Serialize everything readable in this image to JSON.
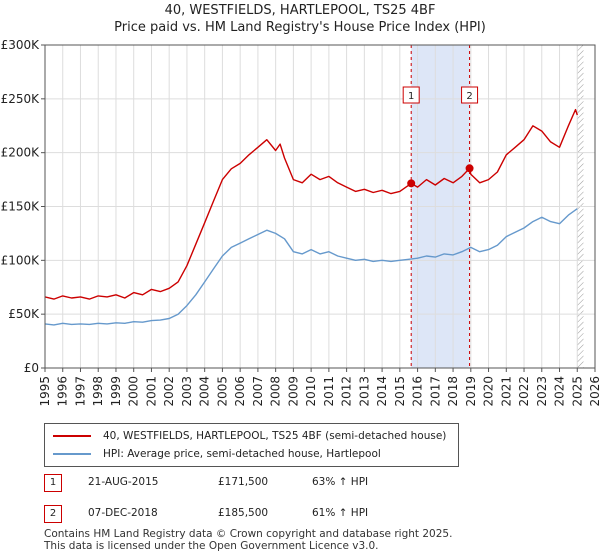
{
  "title_line1": "40, WESTFIELDS, HARTLEPOOL, TS25 4BF",
  "title_line2": "Price paid vs. HM Land Registry's House Price Index (HPI)",
  "chart_data": {
    "type": "line",
    "title": "40, WESTFIELDS, HARTLEPOOL, TS25 4BF - Price paid vs. HM Land Registry's House Price Index (HPI)",
    "xlabel": "",
    "ylabel": "",
    "xlim": [
      1995,
      2026
    ],
    "ylim": [
      0,
      300000
    ],
    "x_ticks": [
      1995,
      1996,
      1997,
      1998,
      1999,
      2000,
      2001,
      2002,
      2003,
      2004,
      2005,
      2006,
      2007,
      2008,
      2009,
      2010,
      2011,
      2012,
      2013,
      2014,
      2015,
      2016,
      2017,
      2018,
      2019,
      2020,
      2021,
      2022,
      2023,
      2024,
      2025,
      2026
    ],
    "y_ticks": [
      {
        "value": 0,
        "label": "£0"
      },
      {
        "value": 50000,
        "label": "£50K"
      },
      {
        "value": 100000,
        "label": "£100K"
      },
      {
        "value": 150000,
        "label": "£150K"
      },
      {
        "value": 200000,
        "label": "£200K"
      },
      {
        "value": 250000,
        "label": "£250K"
      },
      {
        "value": 300000,
        "label": "£300K"
      }
    ],
    "grid": true,
    "colors": {
      "red": "#cc0000",
      "blue": "#6699cc",
      "shade": "#dde6f7",
      "grid": "#dddddd"
    },
    "shaded_region": [
      2015.64,
      2018.93
    ],
    "hatched_from": 2025.0,
    "series": [
      {
        "name": "40, WESTFIELDS, HARTLEPOOL, TS25 4BF (semi-detached house)",
        "color": "#cc0000",
        "points": [
          [
            1995.0,
            66000
          ],
          [
            1995.5,
            64000
          ],
          [
            1996.0,
            67000
          ],
          [
            1996.5,
            65000
          ],
          [
            1997.0,
            66000
          ],
          [
            1997.5,
            64000
          ],
          [
            1998.0,
            67000
          ],
          [
            1998.5,
            66000
          ],
          [
            1999.0,
            68000
          ],
          [
            1999.5,
            65000
          ],
          [
            2000.0,
            70000
          ],
          [
            2000.5,
            68000
          ],
          [
            2001.0,
            73000
          ],
          [
            2001.5,
            71000
          ],
          [
            2002.0,
            74000
          ],
          [
            2002.5,
            80000
          ],
          [
            2003.0,
            95000
          ],
          [
            2003.5,
            115000
          ],
          [
            2004.0,
            135000
          ],
          [
            2004.5,
            155000
          ],
          [
            2005.0,
            175000
          ],
          [
            2005.5,
            185000
          ],
          [
            2006.0,
            190000
          ],
          [
            2006.5,
            198000
          ],
          [
            2007.0,
            205000
          ],
          [
            2007.5,
            212000
          ],
          [
            2008.0,
            202000
          ],
          [
            2008.25,
            208000
          ],
          [
            2008.5,
            195000
          ],
          [
            2009.0,
            175000
          ],
          [
            2009.5,
            172000
          ],
          [
            2010.0,
            180000
          ],
          [
            2010.5,
            175000
          ],
          [
            2011.0,
            178000
          ],
          [
            2011.5,
            172000
          ],
          [
            2012.0,
            168000
          ],
          [
            2012.5,
            164000
          ],
          [
            2013.0,
            166000
          ],
          [
            2013.5,
            163000
          ],
          [
            2014.0,
            165000
          ],
          [
            2014.5,
            162000
          ],
          [
            2015.0,
            164000
          ],
          [
            2015.64,
            171500
          ],
          [
            2016.0,
            168000
          ],
          [
            2016.5,
            175000
          ],
          [
            2017.0,
            170000
          ],
          [
            2017.5,
            176000
          ],
          [
            2018.0,
            172000
          ],
          [
            2018.5,
            178000
          ],
          [
            2018.93,
            185500
          ],
          [
            2019.0,
            180000
          ],
          [
            2019.5,
            172000
          ],
          [
            2020.0,
            175000
          ],
          [
            2020.5,
            182000
          ],
          [
            2021.0,
            198000
          ],
          [
            2021.5,
            205000
          ],
          [
            2022.0,
            212000
          ],
          [
            2022.5,
            225000
          ],
          [
            2023.0,
            220000
          ],
          [
            2023.5,
            210000
          ],
          [
            2024.0,
            205000
          ],
          [
            2024.5,
            225000
          ],
          [
            2024.9,
            240000
          ],
          [
            2025.0,
            235000
          ]
        ]
      },
      {
        "name": "HPI: Average price, semi-detached house, Hartlepool",
        "color": "#6699cc",
        "points": [
          [
            1995.0,
            41000
          ],
          [
            1995.5,
            40000
          ],
          [
            1996.0,
            41500
          ],
          [
            1996.5,
            40500
          ],
          [
            1997.0,
            41000
          ],
          [
            1997.5,
            40500
          ],
          [
            1998.0,
            41500
          ],
          [
            1998.5,
            41000
          ],
          [
            1999.0,
            42000
          ],
          [
            1999.5,
            41500
          ],
          [
            2000.0,
            43000
          ],
          [
            2000.5,
            42500
          ],
          [
            2001.0,
            44000
          ],
          [
            2001.5,
            44500
          ],
          [
            2002.0,
            46000
          ],
          [
            2002.5,
            50000
          ],
          [
            2003.0,
            58000
          ],
          [
            2003.5,
            68000
          ],
          [
            2004.0,
            80000
          ],
          [
            2004.5,
            92000
          ],
          [
            2005.0,
            104000
          ],
          [
            2005.5,
            112000
          ],
          [
            2006.0,
            116000
          ],
          [
            2006.5,
            120000
          ],
          [
            2007.0,
            124000
          ],
          [
            2007.5,
            128000
          ],
          [
            2008.0,
            125000
          ],
          [
            2008.5,
            120000
          ],
          [
            2009.0,
            108000
          ],
          [
            2009.5,
            106000
          ],
          [
            2010.0,
            110000
          ],
          [
            2010.5,
            106000
          ],
          [
            2011.0,
            108000
          ],
          [
            2011.5,
            104000
          ],
          [
            2012.0,
            102000
          ],
          [
            2012.5,
            100000
          ],
          [
            2013.0,
            101000
          ],
          [
            2013.5,
            99000
          ],
          [
            2014.0,
            100000
          ],
          [
            2014.5,
            99000
          ],
          [
            2015.0,
            100000
          ],
          [
            2015.5,
            101000
          ],
          [
            2016.0,
            102000
          ],
          [
            2016.5,
            104000
          ],
          [
            2017.0,
            103000
          ],
          [
            2017.5,
            106000
          ],
          [
            2018.0,
            105000
          ],
          [
            2018.5,
            108000
          ],
          [
            2019.0,
            112000
          ],
          [
            2019.5,
            108000
          ],
          [
            2020.0,
            110000
          ],
          [
            2020.5,
            114000
          ],
          [
            2021.0,
            122000
          ],
          [
            2021.5,
            126000
          ],
          [
            2022.0,
            130000
          ],
          [
            2022.5,
            136000
          ],
          [
            2023.0,
            140000
          ],
          [
            2023.5,
            136000
          ],
          [
            2024.0,
            134000
          ],
          [
            2024.5,
            142000
          ],
          [
            2025.0,
            148000
          ]
        ]
      }
    ],
    "sales": [
      {
        "id": "1",
        "x": 2015.64,
        "y": 171500
      },
      {
        "id": "2",
        "x": 2018.93,
        "y": 185500
      }
    ]
  },
  "legend": {
    "red_label": "40, WESTFIELDS, HARTLEPOOL, TS25 4BF (semi-detached house)",
    "blue_label": "HPI: Average price, semi-detached house, Hartlepool"
  },
  "transactions": [
    {
      "id": "1",
      "date": "21-AUG-2015",
      "price": "£171,500",
      "hpi": "63% ↑ HPI"
    },
    {
      "id": "2",
      "date": "07-DEC-2018",
      "price": "£185,500",
      "hpi": "61% ↑ HPI"
    }
  ],
  "footer_line1": "Contains HM Land Registry data © Crown copyright and database right 2025.",
  "footer_line2": "This data is licensed under the Open Government Licence v3.0."
}
